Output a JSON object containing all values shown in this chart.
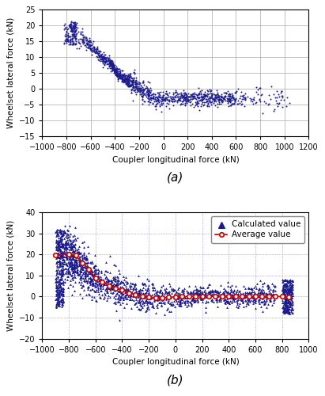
{
  "title_a": "(a)",
  "title_b": "(b)",
  "xlabel": "Coupler longitudinal force (kN)",
  "ylabel": "Wheelset lateral force (kN)",
  "subplot_a": {
    "xlim": [
      -1000,
      1200
    ],
    "ylim": [
      -15,
      25
    ],
    "xticks": [
      -1000,
      -800,
      -600,
      -400,
      -200,
      0,
      200,
      400,
      600,
      800,
      1000,
      1200
    ],
    "yticks": [
      -15,
      -10,
      -5,
      0,
      5,
      10,
      15,
      20,
      25
    ],
    "scatter_color": "#1a1a8c",
    "scatter_size": 2,
    "grid_color": "#aaaaaa",
    "grid_style": "-"
  },
  "subplot_b": {
    "xlim": [
      -1000,
      1000
    ],
    "ylim": [
      -20,
      40
    ],
    "xticks": [
      -1000,
      -800,
      -600,
      -400,
      -200,
      0,
      200,
      400,
      600,
      800,
      1000
    ],
    "yticks": [
      -20,
      -10,
      0,
      10,
      20,
      30,
      40
    ],
    "scatter_color": "#1a1a8c",
    "scatter_size": 4,
    "avg_color": "#cc0000",
    "calc_color": "#1a1a8c",
    "legend_calc": "Calculated value",
    "legend_avg": "Average value",
    "grid_color": "#7777cc",
    "grid_style": ":"
  },
  "avg_x": [
    -900,
    -800,
    -750,
    -700,
    -650,
    -600,
    -550,
    -500,
    -450,
    -400,
    -350,
    -300,
    -250,
    -200,
    -150,
    -100,
    -50,
    0,
    50,
    100,
    150,
    200,
    250,
    300,
    350,
    400,
    450,
    500,
    550,
    600,
    650,
    700,
    750,
    800,
    850
  ],
  "avg_y": [
    19.5,
    20.2,
    19.5,
    16.0,
    13.0,
    8.8,
    7.0,
    5.0,
    4.0,
    3.0,
    1.8,
    0.8,
    0.0,
    -0.3,
    -0.5,
    -0.5,
    -0.3,
    -0.2,
    0.0,
    0.0,
    0.2,
    0.2,
    0.2,
    0.2,
    0.1,
    0.0,
    0.0,
    0.0,
    0.0,
    0.0,
    0.0,
    0.0,
    0.0,
    0.0,
    -0.2
  ]
}
